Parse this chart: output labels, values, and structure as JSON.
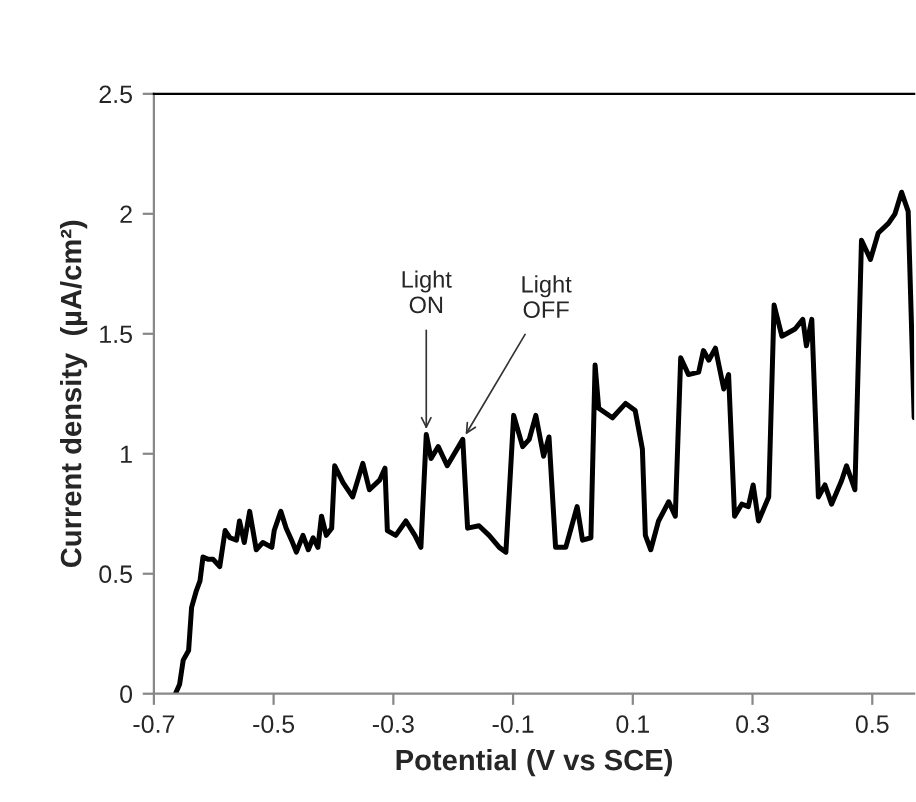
{
  "chart_data": {
    "type": "line",
    "xlabel": "Potential (V vs SCE)",
    "ylabel": "Current density  (µA/cm²)",
    "xlim": [
      -0.7,
      0.57
    ],
    "xticks": [
      -0.7,
      -0.5,
      -0.3,
      -0.1,
      0.1,
      0.3,
      0.5
    ],
    "ylim": [
      0,
      2.5
    ],
    "yticks": [
      0,
      0.5,
      1,
      1.5,
      2,
      2.5
    ],
    "grid": false,
    "legend": false,
    "marker": "none",
    "line_style": "solid",
    "annotations": [
      {
        "text": "Light\nON",
        "x": -0.245,
        "y": 1.08
      },
      {
        "text": "Light\nOFF",
        "x": -0.184,
        "y": 1.06
      }
    ],
    "series": [
      {
        "color": "#000000",
        "x": [
          -0.664,
          -0.657,
          -0.651,
          -0.642,
          -0.637,
          -0.629,
          -0.623,
          -0.618,
          -0.609,
          -0.601,
          -0.59,
          -0.581,
          -0.573,
          -0.562,
          -0.557,
          -0.549,
          -0.54,
          -0.529,
          -0.518,
          -0.503,
          -0.499,
          -0.488,
          -0.479,
          -0.47,
          -0.462,
          -0.451,
          -0.442,
          -0.434,
          -0.426,
          -0.42,
          -0.412,
          -0.403,
          -0.398,
          -0.384,
          -0.368,
          -0.351,
          -0.34,
          -0.323,
          -0.314,
          -0.31,
          -0.296,
          -0.279,
          -0.264,
          -0.254,
          -0.245,
          -0.237,
          -0.225,
          -0.21,
          -0.184,
          -0.176,
          -0.157,
          -0.14,
          -0.123,
          -0.112,
          -0.099,
          -0.084,
          -0.073,
          -0.062,
          -0.049,
          -0.04,
          -0.029,
          -0.012,
          0.007,
          0.016,
          0.03,
          0.037,
          0.043,
          0.066,
          0.088,
          0.104,
          0.116,
          0.121,
          0.13,
          0.143,
          0.16,
          0.171,
          0.18,
          0.193,
          0.21,
          0.218,
          0.227,
          0.238,
          0.252,
          0.26,
          0.27,
          0.282,
          0.293,
          0.301,
          0.31,
          0.327,
          0.336,
          0.349,
          0.371,
          0.384,
          0.39,
          0.399,
          0.41,
          0.421,
          0.432,
          0.449,
          0.457,
          0.471,
          0.482,
          0.497,
          0.51,
          0.527,
          0.538,
          0.549,
          0.56,
          0.57
        ],
        "values": [
          0,
          0.04,
          0.14,
          0.18,
          0.36,
          0.43,
          0.47,
          0.57,
          0.56,
          0.56,
          0.53,
          0.68,
          0.65,
          0.64,
          0.72,
          0.63,
          0.76,
          0.6,
          0.63,
          0.61,
          0.68,
          0.76,
          0.69,
          0.64,
          0.59,
          0.66,
          0.6,
          0.65,
          0.61,
          0.74,
          0.66,
          0.69,
          0.95,
          0.88,
          0.82,
          0.96,
          0.85,
          0.89,
          0.94,
          0.68,
          0.66,
          0.72,
          0.66,
          0.61,
          1.08,
          0.98,
          1.03,
          0.95,
          1.06,
          0.69,
          0.7,
          0.66,
          0.61,
          0.59,
          1.16,
          1.03,
          1.06,
          1.16,
          0.99,
          1.07,
          0.61,
          0.61,
          0.78,
          0.64,
          0.65,
          1.37,
          1.19,
          1.15,
          1.21,
          1.18,
          1.02,
          0.66,
          0.6,
          0.72,
          0.8,
          0.74,
          1.4,
          1.33,
          1.34,
          1.43,
          1.39,
          1.44,
          1.27,
          1.33,
          0.74,
          0.79,
          0.78,
          0.87,
          0.72,
          0.82,
          1.62,
          1.49,
          1.52,
          1.56,
          1.45,
          1.56,
          0.82,
          0.87,
          0.79,
          0.89,
          0.95,
          0.85,
          1.89,
          1.81,
          1.92,
          1.96,
          2.0,
          2.09,
          2.01,
          1.15
        ]
      }
    ]
  }
}
